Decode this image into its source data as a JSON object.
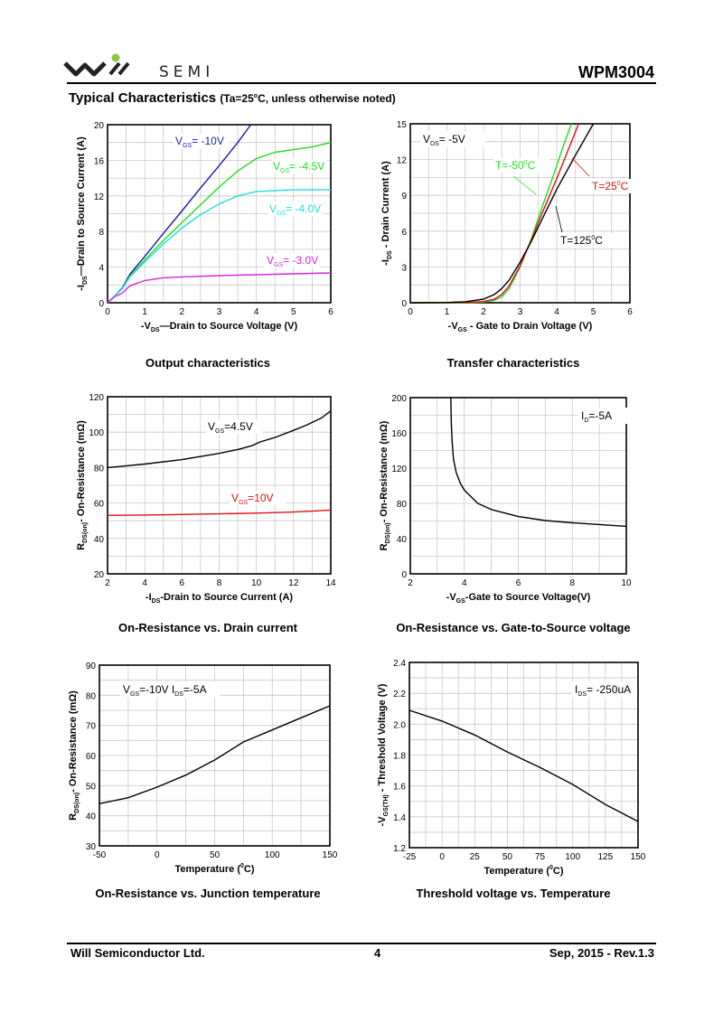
{
  "header": {
    "logo_text": "SEMI",
    "logo_brand": "Will SEMI",
    "part_number": "WPM3004",
    "section_title": "Typical Characteristics",
    "section_condition_pre": "(Ta=25",
    "section_condition_deg": "o",
    "section_condition_post": "C, unless otherwise noted)",
    "logo_dot_color": "#8dc63f"
  },
  "footer": {
    "company": "Will Semiconductor Ltd.",
    "page": "4",
    "revision": "Sep, 2015 - Rev.1.3"
  },
  "chart_data": [
    {
      "id": "output",
      "type": "line",
      "title": "Output characteristics",
      "xlabel": {
        "pre": "-V",
        "sub": "DS",
        "post": "—Drain to Source Voltage (V)"
      },
      "ylabel": {
        "pre": "-I",
        "sub": "DS",
        "post": "—Drain to Source Current (A)"
      },
      "xlim": [
        0,
        6
      ],
      "ylim": [
        0,
        20
      ],
      "xticks": [
        "0",
        "1",
        "2",
        "3",
        "4",
        "5",
        "6"
      ],
      "yticks": [
        "0",
        "4",
        "8",
        "12",
        "16",
        "20"
      ],
      "grid": true,
      "series": [
        {
          "name": "VGS = -10V",
          "label_pre": "V",
          "label_sub": "GS",
          "label_post": "= -10V",
          "color": "#1a1aa6",
          "x": [
            0,
            0.2,
            0.4,
            0.6,
            1,
            1.5,
            2,
            2.5,
            3,
            3.5,
            3.85
          ],
          "y": [
            0,
            0.8,
            1.7,
            3.2,
            5.2,
            7.8,
            10.3,
            12.9,
            15.4,
            18,
            20
          ]
        },
        {
          "name": "VGS = -4.5V",
          "label_pre": "V",
          "label_sub": "GS",
          "label_post": "= -4.5V",
          "color": "#22dd22",
          "x": [
            0,
            0.2,
            0.4,
            0.6,
            1,
            1.5,
            2,
            2.5,
            3,
            3.5,
            4,
            4.5,
            5,
            5.5,
            6
          ],
          "y": [
            0,
            0.8,
            1.6,
            3,
            4.8,
            7,
            9,
            11,
            13,
            14.8,
            16.2,
            16.9,
            17.2,
            17.5,
            18
          ]
        },
        {
          "name": "VGS = -4.0V",
          "label_pre": "V",
          "label_sub": "GS",
          "label_post": "= -4.0V",
          "color": "#22dddd",
          "x": [
            0,
            0.2,
            0.4,
            0.6,
            1,
            1.5,
            2,
            2.5,
            3,
            3.5,
            4,
            4.5,
            5,
            5.5,
            6
          ],
          "y": [
            0,
            0.8,
            1.6,
            2.9,
            4.6,
            6.6,
            8.4,
            9.9,
            11.1,
            12,
            12.5,
            12.6,
            12.7,
            12.7,
            12.7
          ]
        },
        {
          "name": "VGS = -3.0V",
          "label_pre": "V",
          "label_sub": "GS",
          "label_post": "= -3.0V",
          "color": "#dd22dd",
          "x": [
            0,
            0.2,
            0.4,
            0.6,
            1,
            1.5,
            2,
            3,
            4,
            5,
            6
          ],
          "y": [
            0,
            0.7,
            1.1,
            1.9,
            2.5,
            2.8,
            2.9,
            3.05,
            3.15,
            3.25,
            3.35
          ]
        }
      ]
    },
    {
      "id": "transfer",
      "type": "line",
      "title": "Transfer characteristics",
      "xlabel": {
        "pre": "-V",
        "sub": "GS",
        "post": " - Gate to Drain Voltage (V)"
      },
      "ylabel": {
        "pre": "-I",
        "sub": "DS",
        "post": " - Drain Current (A)"
      },
      "xlim": [
        0,
        6
      ],
      "ylim": [
        0,
        15
      ],
      "xticks": [
        "0",
        "1",
        "2",
        "3",
        "4",
        "5",
        "6"
      ],
      "yticks": [
        "0",
        "3",
        "6",
        "9",
        "12",
        "15"
      ],
      "grid": true,
      "annotation": {
        "pre": "V",
        "sub": "DS",
        "post": "= -5V"
      },
      "series": [
        {
          "name": "T=-50°C",
          "label_pre": "T=-50",
          "label_sup": "0",
          "label_post": "C",
          "color": "#22dd22",
          "x": [
            0,
            1.5,
            2,
            2.3,
            2.5,
            2.7,
            3,
            3.3,
            3.6,
            3.9,
            4.2,
            4.4
          ],
          "y": [
            0,
            0,
            0.05,
            0.2,
            0.5,
            1.2,
            3,
            5.3,
            8,
            10.6,
            13.3,
            15
          ]
        },
        {
          "name": "T=25°C",
          "label_pre": "T=25",
          "label_sup": "0",
          "label_post": "C",
          "color": "#dd1111",
          "x": [
            0,
            1.5,
            2,
            2.3,
            2.5,
            2.7,
            3,
            3.3,
            3.6,
            4,
            4.3,
            4.6
          ],
          "y": [
            0,
            0.02,
            0.1,
            0.3,
            0.7,
            1.4,
            3.1,
            5.2,
            7.5,
            10.4,
            12.7,
            15
          ]
        },
        {
          "name": "T=125°C",
          "label_pre": "T=125",
          "label_sup": "0",
          "label_post": "C",
          "color": "#000000",
          "x": [
            0,
            1,
            1.5,
            2,
            2.3,
            2.5,
            2.7,
            3,
            3.3,
            3.6,
            4,
            4.5,
            5
          ],
          "y": [
            0,
            0.02,
            0.08,
            0.3,
            0.7,
            1.2,
            1.9,
            3.4,
            5.1,
            7,
            9.5,
            12.3,
            15
          ]
        }
      ]
    },
    {
      "id": "ron-vs-id",
      "type": "line",
      "title": "On-Resistance vs. Drain current",
      "xlabel": {
        "pre": "-I",
        "sub": "DS",
        "post": "-Drain to Source Current (A)"
      },
      "ylabel": {
        "pre": "R",
        "sub": "DS(on)",
        "post": "- On-Resistance (mΩ)"
      },
      "xlim": [
        2,
        14
      ],
      "ylim": [
        20,
        120
      ],
      "xticks": [
        "2",
        "4",
        "6",
        "8",
        "10",
        "12",
        "14"
      ],
      "yticks": [
        "20",
        "40",
        "60",
        "80",
        "100",
        "120"
      ],
      "grid": true,
      "series": [
        {
          "name": "VGS=4.5V",
          "label_pre": "V",
          "label_sub": "GS",
          "label_post": "=4.5V",
          "color": "#000000",
          "x": [
            2,
            4,
            6,
            8,
            9,
            9.8,
            10.2,
            11,
            12,
            12.7,
            13.5,
            14
          ],
          "y": [
            80,
            82,
            84.5,
            88,
            90.2,
            92.5,
            94.5,
            97,
            101,
            104,
            108,
            112
          ]
        },
        {
          "name": "VGS=10V",
          "label_pre": "V",
          "label_sub": "GS",
          "label_post": "=10V",
          "color": "#dd1111",
          "x": [
            2,
            4,
            6,
            8,
            10,
            12,
            13,
            14
          ],
          "y": [
            53,
            53.2,
            53.5,
            53.9,
            54.3,
            54.9,
            55.4,
            56
          ]
        }
      ]
    },
    {
      "id": "ron-vs-vgs",
      "type": "line",
      "title": "On-Resistance vs. Gate-to-Source voltage",
      "xlabel": {
        "pre": "-V",
        "sub": "GS",
        "post": "-Gate to Source Voltage(V)"
      },
      "ylabel": {
        "pre": "R",
        "sub": "DS(on)",
        "post": "- On-Resistance (mΩ)"
      },
      "xlim": [
        2,
        10
      ],
      "ylim": [
        0,
        200
      ],
      "xticks": [
        "2",
        "4",
        "6",
        "8",
        "10"
      ],
      "yticks": [
        "0",
        "40",
        "80",
        "120",
        "160",
        "200"
      ],
      "grid": true,
      "annotation": {
        "pre": "I",
        "sub": "D",
        "post": "=-5A"
      },
      "series": [
        {
          "name": "ID=-5A",
          "color": "#000000",
          "x": [
            3.5,
            3.52,
            3.55,
            3.6,
            3.7,
            3.85,
            4,
            4.5,
            5,
            6,
            7,
            8,
            9,
            10
          ],
          "y": [
            200,
            170,
            150,
            130,
            115,
            103,
            95,
            80,
            73,
            65,
            60.5,
            58,
            56,
            54
          ]
        }
      ]
    },
    {
      "id": "ron-vs-temp",
      "type": "line",
      "title": "On-Resistance vs. Junction temperature",
      "xlabel": {
        "pre": "Temperature (",
        "sup": "0",
        "post": "C)"
      },
      "ylabel": {
        "pre": "R",
        "sub": "DS(on)",
        "post": "- On-Resistance (mΩ)"
      },
      "xlim": [
        -50,
        150
      ],
      "ylim": [
        30,
        90
      ],
      "xticks": [
        "-50",
        "0",
        "50",
        "100",
        "150"
      ],
      "yticks": [
        "30",
        "40",
        "50",
        "60",
        "70",
        "80",
        "90"
      ],
      "grid": true,
      "annotation": {
        "pre": "V",
        "sub": "GS",
        "mid": "=-10V I",
        "sub2": "DS",
        "post": "=-5A"
      },
      "series": [
        {
          "name": "VGS=-10V IDS=-5A",
          "color": "#000000",
          "x": [
            -50,
            -25,
            0,
            25,
            50,
            75,
            100,
            125,
            150
          ],
          "y": [
            44,
            46,
            49.5,
            53.5,
            58.5,
            64.5,
            68.5,
            72.5,
            76.5
          ]
        }
      ]
    },
    {
      "id": "vth-vs-temp",
      "type": "line",
      "title": "Threshold voltage vs. Temperature",
      "xlabel": {
        "pre": "Temperature (",
        "sup": "0",
        "post": "C)"
      },
      "ylabel": {
        "pre": "-V",
        "sub": "GS(TH)",
        "post": " - Threshold Voltage (V)"
      },
      "xlim": [
        -25,
        150
      ],
      "ylim": [
        1.2,
        2.4
      ],
      "xticks": [
        "-25",
        "0",
        "25",
        "50",
        "75",
        "100",
        "125",
        "150"
      ],
      "yticks": [
        "1.2",
        "1.4",
        "1.6",
        "1.8",
        "2.0",
        "2.2",
        "2.4"
      ],
      "grid": true,
      "annotation": {
        "pre": "I",
        "sub": "DS",
        "post": "= -250uA"
      },
      "series": [
        {
          "name": "IDS=-250uA",
          "color": "#000000",
          "x": [
            -25,
            0,
            25,
            50,
            75,
            100,
            125,
            150
          ],
          "y": [
            2.09,
            2.02,
            1.93,
            1.82,
            1.72,
            1.61,
            1.48,
            1.37
          ]
        }
      ]
    }
  ]
}
